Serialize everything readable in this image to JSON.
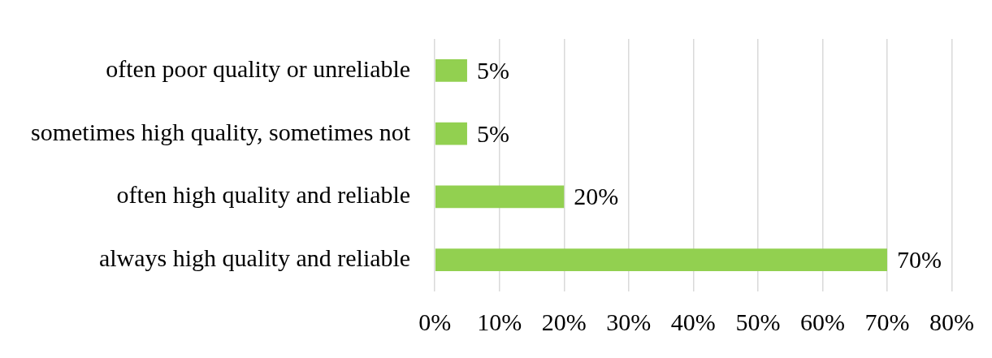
{
  "chart_data": {
    "type": "bar",
    "orientation": "horizontal",
    "categories": [
      "often poor quality or unreliable",
      "sometimes high quality, sometimes not",
      "often high quality and reliable",
      "always high quality and reliable"
    ],
    "values": [
      5,
      5,
      20,
      70
    ],
    "color": "#92d050",
    "value_labels": [
      "5%",
      "5%",
      "20%",
      "70%"
    ],
    "xlim": [
      0,
      80
    ],
    "xticks": [
      {
        "value": 0,
        "label": "0%"
      },
      {
        "value": 10,
        "label": "10%"
      },
      {
        "value": 20,
        "label": "20%"
      },
      {
        "value": 30,
        "label": "30%"
      },
      {
        "value": 40,
        "label": "40%"
      },
      {
        "value": 50,
        "label": "50%"
      },
      {
        "value": 60,
        "label": "60%"
      },
      {
        "value": 70,
        "label": "70%"
      },
      {
        "value": 80,
        "label": "80%"
      }
    ],
    "grid": "x",
    "legend": false
  }
}
